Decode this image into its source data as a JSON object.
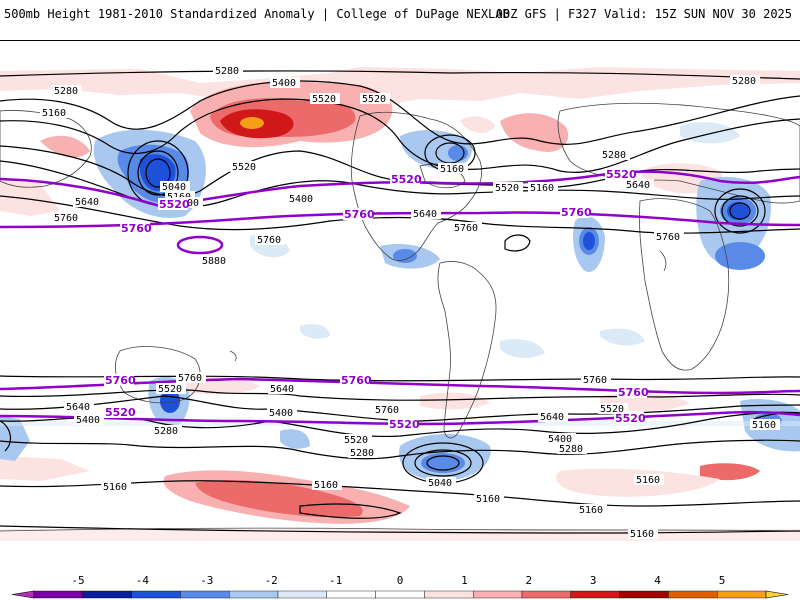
{
  "header": {
    "left_title": "500mb Height 1981-2010 Standardized Anomaly | College of DuPage NEXLAB",
    "right_title": "00Z GFS | F327 Valid: 15Z SUN NOV 30 2025"
  },
  "map": {
    "contour_labels_black": [
      {
        "text": "5280"
      },
      {
        "text": "5400"
      },
      {
        "text": "5520"
      },
      {
        "text": "5160"
      },
      {
        "text": "5040"
      },
      {
        "text": "5160"
      },
      {
        "text": "5400"
      },
      {
        "text": "5520"
      },
      {
        "text": "5640"
      },
      {
        "text": "5760"
      },
      {
        "text": "5760"
      },
      {
        "text": "5880"
      },
      {
        "text": "5280"
      },
      {
        "text": "5520"
      },
      {
        "text": "5160"
      },
      {
        "text": "5520"
      },
      {
        "text": "5400"
      },
      {
        "text": "5640"
      },
      {
        "text": "5760"
      },
      {
        "text": "5280"
      },
      {
        "text": "5640"
      },
      {
        "text": "5760"
      },
      {
        "text": "5160"
      },
      {
        "text": "5280"
      },
      {
        "text": "5760"
      },
      {
        "text": "5640"
      },
      {
        "text": "5400"
      },
      {
        "text": "5520"
      },
      {
        "text": "5280"
      },
      {
        "text": "5640"
      },
      {
        "text": "5400"
      },
      {
        "text": "5760"
      },
      {
        "text": "5520"
      },
      {
        "text": "5280"
      },
      {
        "text": "5040"
      },
      {
        "text": "5160"
      },
      {
        "text": "5160"
      },
      {
        "text": "5160"
      },
      {
        "text": "5400"
      },
      {
        "text": "5280"
      },
      {
        "text": "5640"
      },
      {
        "text": "5520"
      },
      {
        "text": "5760"
      },
      {
        "text": "5160"
      },
      {
        "text": "5160"
      },
      {
        "text": "5160"
      },
      {
        "text": "5160"
      }
    ],
    "contour_labels_purple": [
      {
        "text": "5520"
      },
      {
        "text": "5760"
      },
      {
        "text": "5520"
      },
      {
        "text": "5760"
      },
      {
        "text": "5520"
      },
      {
        "text": "5760"
      },
      {
        "text": "5760"
      },
      {
        "text": "5520"
      },
      {
        "text": "5520"
      },
      {
        "text": "5760"
      },
      {
        "text": "5760"
      },
      {
        "text": "5520"
      },
      {
        "text": "5520"
      }
    ]
  },
  "colorbar": {
    "ticks": [
      "-5",
      "-4",
      "-3",
      "-2",
      "-1",
      "0",
      "1",
      "2",
      "3",
      "4",
      "5"
    ],
    "colors": [
      "#b030b8",
      "#7a00a8",
      "#0a1ea0",
      "#1e50d8",
      "#5a8ae8",
      "#a8c8f0",
      "#dceaf8",
      "#ffffff",
      "#ffffff",
      "#fde2e2",
      "#f8b0b0",
      "#ec6a6a",
      "#d01818",
      "#a00000",
      "#e06000",
      "#f3a018",
      "#f7d040"
    ]
  }
}
